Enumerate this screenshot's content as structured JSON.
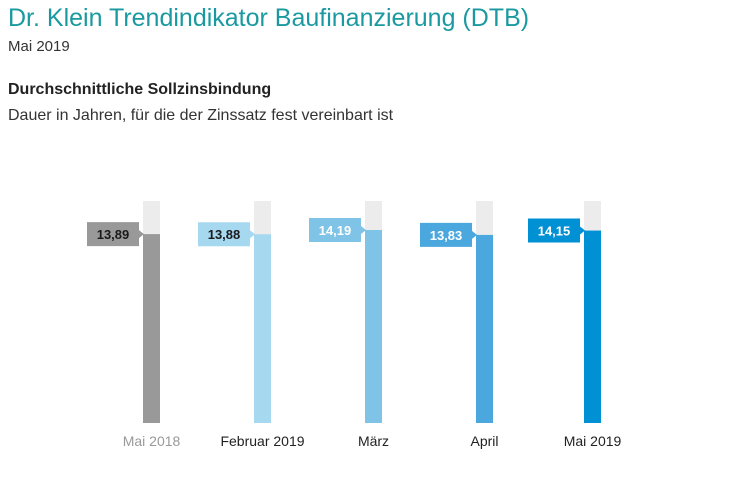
{
  "header": {
    "title": "Dr. Klein Trendindikator Baufinanzierung (DTB)",
    "date": "Mai 2019"
  },
  "chart_data": {
    "type": "bar",
    "title": "Durchschnittliche Sollzinsbindung",
    "subtitle": "Dauer in Jahren, für die der Zinssatz fest vereinbart ist",
    "categories": [
      "Mai 2018",
      "Februar 2019",
      "März",
      "April",
      "Mai 2019"
    ],
    "values": [
      13.89,
      13.88,
      14.19,
      13.83,
      14.15
    ],
    "value_labels": [
      "13,89",
      "13,88",
      "14,19",
      "13,83",
      "14,15"
    ],
    "ylim": [
      0,
      15
    ],
    "grid": false,
    "legend": "none",
    "colors": {
      "bars": [
        "#999999",
        "#a6d8f0",
        "#7fc3e6",
        "#4ba8de",
        "#0090d4"
      ],
      "label_text": [
        "#1a1a1a",
        "#1a1a1a",
        "#ffffff",
        "#ffffff",
        "#ffffff"
      ],
      "category_text": [
        "#999999",
        "#222222",
        "#222222",
        "#222222",
        "#222222"
      ],
      "background_track": "#ececec"
    }
  }
}
